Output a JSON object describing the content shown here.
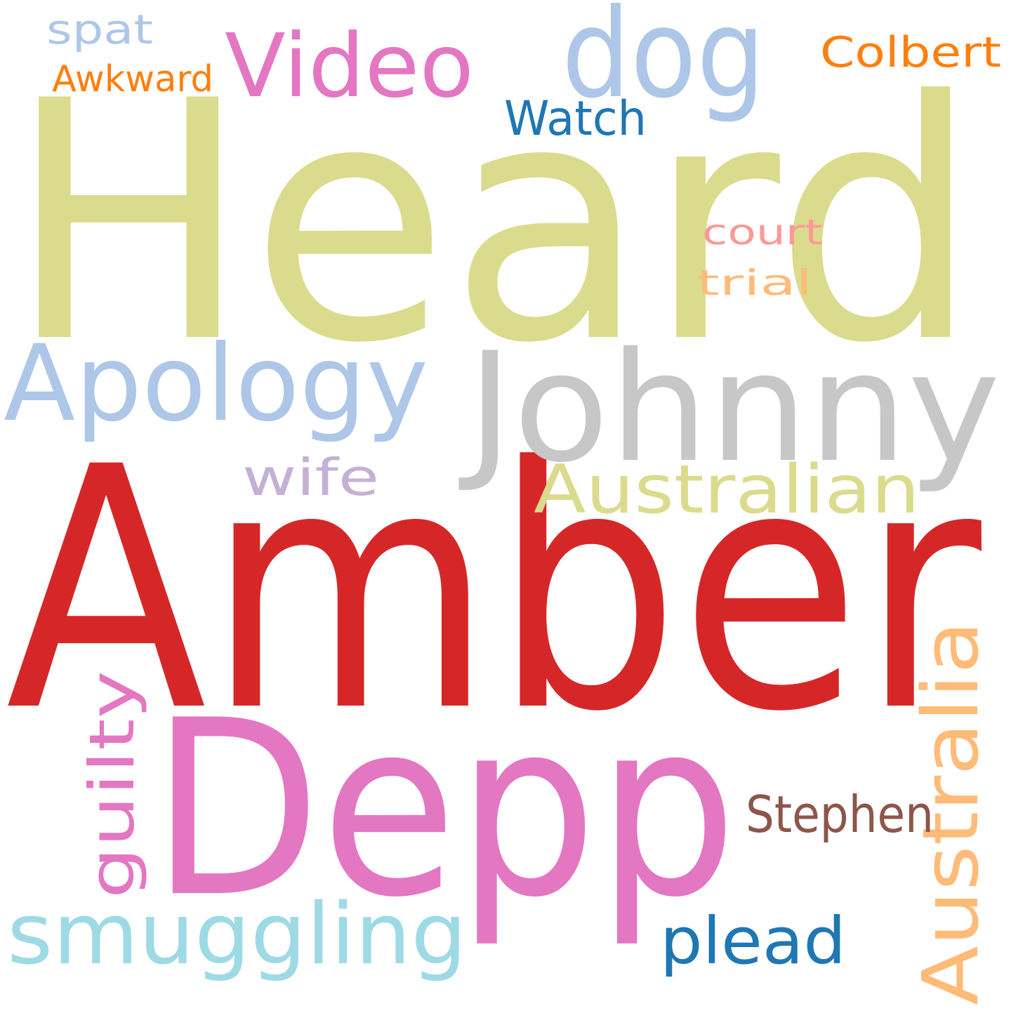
{
  "words": {
    "heard": {
      "text": "Heard",
      "color": "#dbdb8d"
    },
    "amber": {
      "text": "Amber",
      "color": "#d62728"
    },
    "depp": {
      "text": "Depp",
      "color": "#e377c2"
    },
    "johnny": {
      "text": "Johnny",
      "color": "#c7c7c7"
    },
    "apology": {
      "text": "Apology",
      "color": "#aec7e8"
    },
    "dog": {
      "text": "dog",
      "color": "#aec7e8"
    },
    "video": {
      "text": "Video",
      "color": "#e377c2"
    },
    "smuggling": {
      "text": "smuggling",
      "color": "#9edae5"
    },
    "australia": {
      "text": "Australia",
      "color": "#ffbb78"
    },
    "australian": {
      "text": "Australian",
      "color": "#dbdb8d"
    },
    "plead": {
      "text": "plead",
      "color": "#1f77b4"
    },
    "guilty": {
      "text": "guilty",
      "color": "#e377c2"
    },
    "stephen": {
      "text": "Stephen",
      "color": "#8c564b"
    },
    "wife": {
      "text": "wife",
      "color": "#c5b0d5"
    },
    "watch": {
      "text": "Watch",
      "color": "#1f77b4"
    },
    "colbert": {
      "text": "Colbert",
      "color": "#ff7f0e"
    },
    "awkward": {
      "text": "Awkward",
      "color": "#ff7f0e"
    },
    "spat": {
      "text": "spat",
      "color": "#aec7e8"
    },
    "court": {
      "text": "court",
      "color": "#ff9896"
    },
    "trial": {
      "text": "trial",
      "color": "#ffbb78"
    }
  }
}
